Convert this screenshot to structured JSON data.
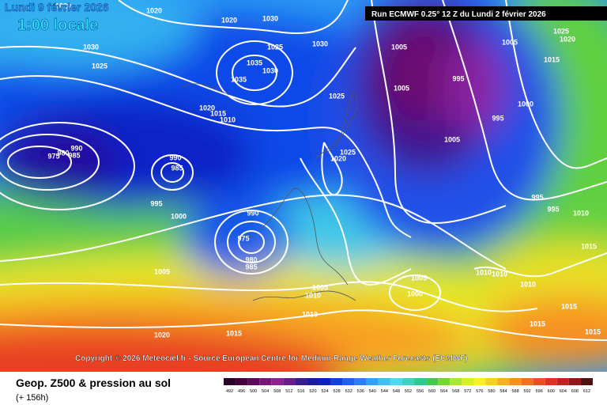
{
  "header": {
    "date": "Lundi 9 février 2026",
    "time": "1:00 locale",
    "run": "Run ECMWF 0.25° 12 Z du Lundi 2 février 2026"
  },
  "copyright": "Copyright © 2026 Meteociel.fr - Source European Centre for Medium-Range Weather Forecasts (ECMWF)",
  "legend": {
    "title": "Geop. Z500 & pression au sol",
    "subtitle": "(+ 156h)",
    "ticks": [
      492,
      496,
      500,
      504,
      508,
      512,
      516,
      520,
      524,
      528,
      532,
      536,
      540,
      544,
      548,
      552,
      556,
      560,
      564,
      568,
      572,
      576,
      580,
      584,
      588,
      592,
      596,
      600,
      604,
      608,
      612
    ],
    "colors": [
      "#2a0028",
      "#44003e",
      "#5e0a5a",
      "#781478",
      "#902090",
      "#6a1a8c",
      "#3a1a90",
      "#1a1aa0",
      "#0a20c0",
      "#1040e0",
      "#2060f0",
      "#2880f8",
      "#30a0f8",
      "#40c0f8",
      "#50d8f0",
      "#40d0c0",
      "#30c890",
      "#40c850",
      "#70d830",
      "#a8e830",
      "#d8f020",
      "#f8f020",
      "#f8d020",
      "#f8b020",
      "#f89020",
      "#f07020",
      "#e85020",
      "#e03020",
      "#c02020",
      "#901818",
      "#501010"
    ]
  },
  "isobar_labels": [
    "1020",
    "1020",
    "1030",
    "1025",
    "1020",
    "1030",
    "1025",
    "1035",
    "1035",
    "1030",
    "1030",
    "1025",
    "1020",
    "1015",
    "1010",
    "975",
    "980",
    "985",
    "990",
    "990",
    "985",
    "995",
    "1000",
    "990",
    "975",
    "980",
    "985",
    "1005",
    "1020",
    "1015",
    "1005",
    "1010",
    "1010",
    "1025",
    "1020",
    "1005",
    "1005",
    "995",
    "1005",
    "1000",
    "995",
    "1005",
    "995",
    "995",
    "1010",
    "1010",
    "1025",
    "1020",
    "1015",
    "1015",
    "1010",
    "1010",
    "1015",
    "1015",
    "1015",
    "1005",
    "1000"
  ]
}
